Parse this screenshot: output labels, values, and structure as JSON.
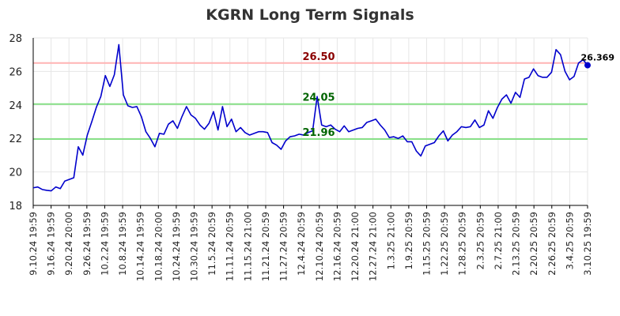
{
  "chart_data": {
    "type": "line",
    "title": "KGRN Long Term Signals",
    "xlabel": "",
    "ylabel": "",
    "ylim": [
      18,
      28
    ],
    "yticks": [
      18,
      20,
      22,
      24,
      26,
      28
    ],
    "x_tick_labels": [
      "9.10.24 19:59",
      "9.16.24 19:59",
      "9.20.24 20:00",
      "9.26.24 19:59",
      "10.2.24 19:59",
      "10.8.24 19:59",
      "10.14.24 19:59",
      "10.18.24 20:00",
      "10.24.24 19:59",
      "10.30.24 19:59",
      "11.5.24 20:59",
      "11.11.24 20:59",
      "11.15.24 21:00",
      "11.21.24 20:59",
      "11.27.24 20:59",
      "12.4.24 20:59",
      "12.10.24 20:59",
      "12.16.24 20:59",
      "12.20.24 21:00",
      "12.27.24 21:00",
      "1.3.25 21:00",
      "1.9.25 20:59",
      "1.15.25 20:59",
      "1.22.25 20:59",
      "1.28.25 20:59",
      "2.3.25 20:59",
      "2.7.25 21:00",
      "2.13.25 20:59",
      "2.20.25 20:59",
      "2.26.25 20:59",
      "3.4.25 20:59",
      "3.10.25 19:59"
    ],
    "grid": true,
    "series": [
      {
        "color": "#0000cc",
        "values": [
          19.05,
          19.1,
          18.95,
          18.9,
          18.87,
          19.1,
          19.0,
          19.45,
          19.55,
          19.65,
          21.5,
          21.0,
          22.2,
          23.0,
          23.85,
          24.5,
          25.75,
          25.1,
          25.8,
          27.6,
          24.6,
          23.95,
          23.85,
          23.9,
          23.3,
          22.4,
          22.0,
          21.5,
          22.3,
          22.25,
          22.85,
          23.05,
          22.6,
          23.3,
          23.9,
          23.4,
          23.2,
          22.8,
          22.55,
          22.9,
          23.6,
          22.5,
          23.9,
          22.7,
          23.15,
          22.4,
          22.65,
          22.35,
          22.2,
          22.3,
          22.4,
          22.4,
          22.35,
          21.75,
          21.6,
          21.35,
          21.85,
          22.1,
          22.15,
          22.25,
          22.2,
          22.35,
          22.45,
          24.5,
          22.8,
          22.7,
          22.8,
          22.55,
          22.4,
          22.75,
          22.4,
          22.5,
          22.6,
          22.65,
          22.95,
          23.05,
          23.15,
          22.8,
          22.5,
          22.05,
          22.1,
          22.0,
          22.15,
          21.8,
          21.8,
          21.25,
          20.95,
          21.55,
          21.65,
          21.75,
          22.15,
          22.45,
          21.85,
          22.2,
          22.4,
          22.7,
          22.65,
          22.7,
          23.1,
          22.65,
          22.8,
          23.65,
          23.2,
          23.85,
          24.35,
          24.6,
          24.1,
          24.75,
          24.45,
          25.55,
          25.65,
          26.15,
          25.75,
          25.65,
          25.65,
          25.95,
          27.3,
          27.0,
          26.0,
          25.5,
          25.7,
          26.5,
          26.7,
          26.369
        ]
      }
    ],
    "horizontal_lines": [
      {
        "value": 26.5,
        "label": "26.50",
        "line_color": "#ffb3b3",
        "label_color": "#8b0000"
      },
      {
        "value": 24.05,
        "label": "24.05",
        "line_color": "#88e088",
        "label_color": "#006400"
      },
      {
        "value": 21.96,
        "label": "21.96",
        "line_color": "#88e088",
        "label_color": "#006400"
      }
    ],
    "last_value_label": "26.369"
  }
}
